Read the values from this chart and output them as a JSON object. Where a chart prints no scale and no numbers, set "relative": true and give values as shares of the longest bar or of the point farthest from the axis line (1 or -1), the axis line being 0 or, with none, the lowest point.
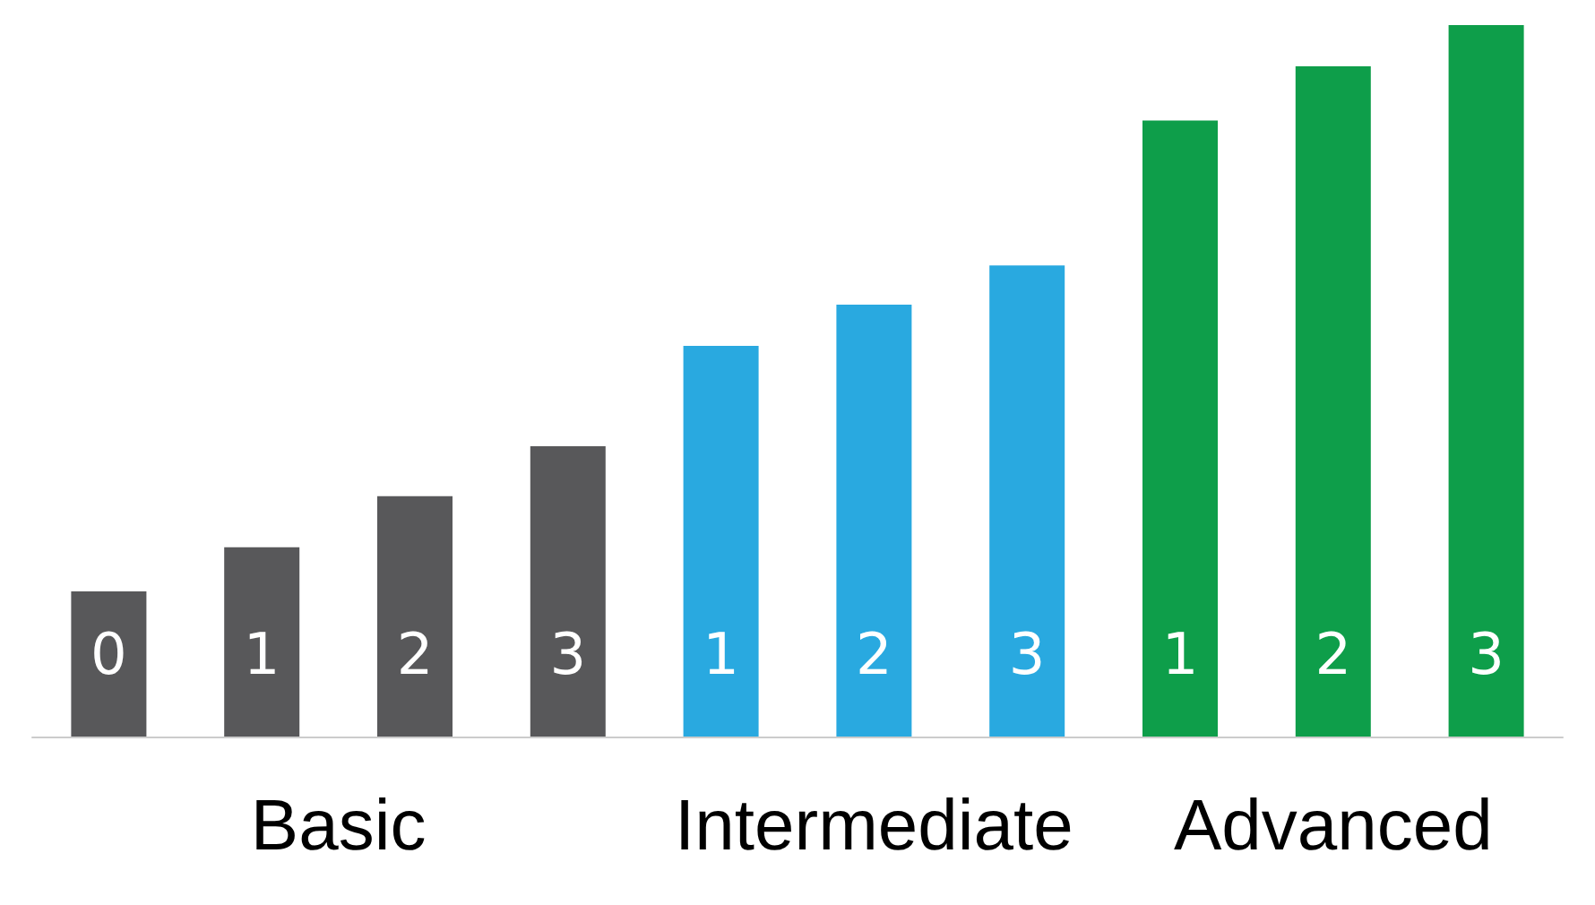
{
  "chart_data": {
    "type": "bar",
    "relative": true,
    "stacked": true,
    "categories": [
      "0",
      "1",
      "2",
      "3",
      "1",
      "2",
      "3",
      "1",
      "2",
      "3"
    ],
    "series": [
      {
        "name": "Basic",
        "color": "#58585a",
        "values": [
          0.204,
          0.266,
          0.338,
          0.408,
          null,
          null,
          null,
          null,
          null,
          null
        ]
      },
      {
        "name": "Intermediate",
        "color": "#29a9e0",
        "values": [
          null,
          null,
          null,
          null,
          0.549,
          0.607,
          0.662,
          null,
          null,
          null
        ]
      },
      {
        "name": "Advanced",
        "color": "#0e9e4a",
        "values": [
          null,
          null,
          null,
          null,
          null,
          null,
          null,
          0.866,
          0.942,
          1
        ]
      }
    ],
    "legend": false
  }
}
